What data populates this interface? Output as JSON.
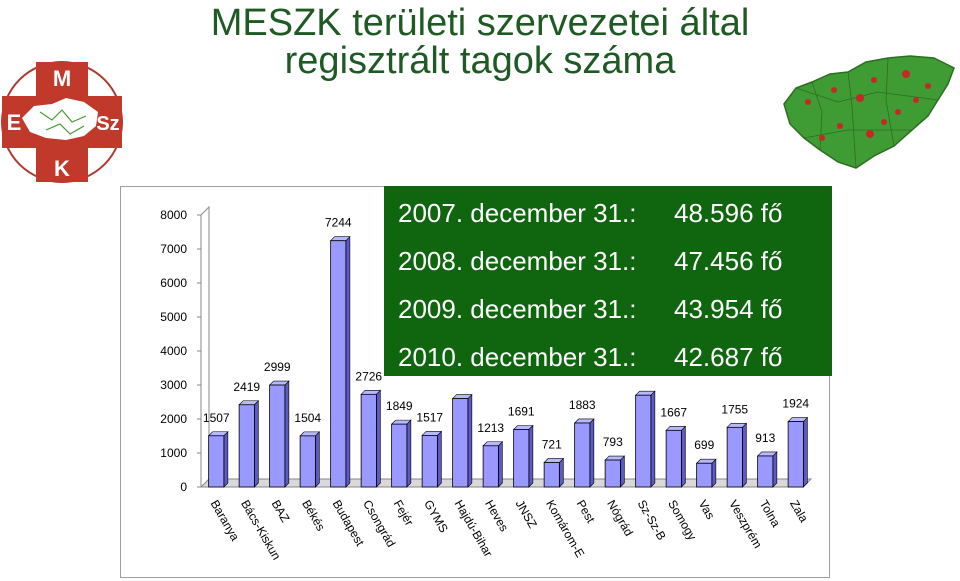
{
  "title_line1": "MESZK területi szervezetei által",
  "title_line2": "regisztrált tagok száma",
  "logo": {
    "letters": [
      "M",
      "E",
      "Sz",
      "K"
    ],
    "cross_color": "#c0392b"
  },
  "info": [
    {
      "date": "2007. december 31.:",
      "value": "48.596 fő"
    },
    {
      "date": "2008. december 31.:",
      "value": "47.456 fő"
    },
    {
      "date": "2009. december 31.:",
      "value": "43.954 fő"
    },
    {
      "date": "2010. december 31.:",
      "value": "42.687 fő"
    }
  ],
  "colors": {
    "title": "#1f5a25",
    "infobox": "#0f660f",
    "bar_fill": "#9999ff",
    "bar_top": "#b8b8ff",
    "bar_side": "#5b5bc2"
  },
  "chart_data": {
    "type": "bar",
    "categories": [
      "Baranya",
      "Bács-Kiskun",
      "BAZ",
      "Békés",
      "Budapest",
      "Csongrád",
      "Fejér",
      "GYMS",
      "Hajdú-Bihar",
      "Heves",
      "JNSZ",
      "Komárom-E",
      "Pest",
      "Nógrád",
      "Sz-Sz-B",
      "Somogy",
      "Vas",
      "Veszprém",
      "Tolna",
      "Zala"
    ],
    "values": [
      1507,
      2419,
      2999,
      1504,
      7244,
      2726,
      1849,
      1517,
      2600,
      1213,
      1691,
      721,
      1883,
      793,
      2700,
      1667,
      699,
      1755,
      913,
      1924
    ],
    "labels": [
      "1507",
      "2419",
      "2999",
      "1504",
      "7244",
      "2726",
      "1849",
      "1517",
      "",
      "1213",
      "1691",
      "721",
      "1883",
      "793",
      "",
      "1667",
      "699",
      "1755",
      "913",
      "1924"
    ],
    "y_ticks": [
      "0",
      "1000",
      "2000",
      "3000",
      "4000",
      "5000",
      "6000",
      "7000",
      "8000"
    ],
    "ylim": [
      0,
      8000
    ],
    "grid": false,
    "legend": false
  }
}
